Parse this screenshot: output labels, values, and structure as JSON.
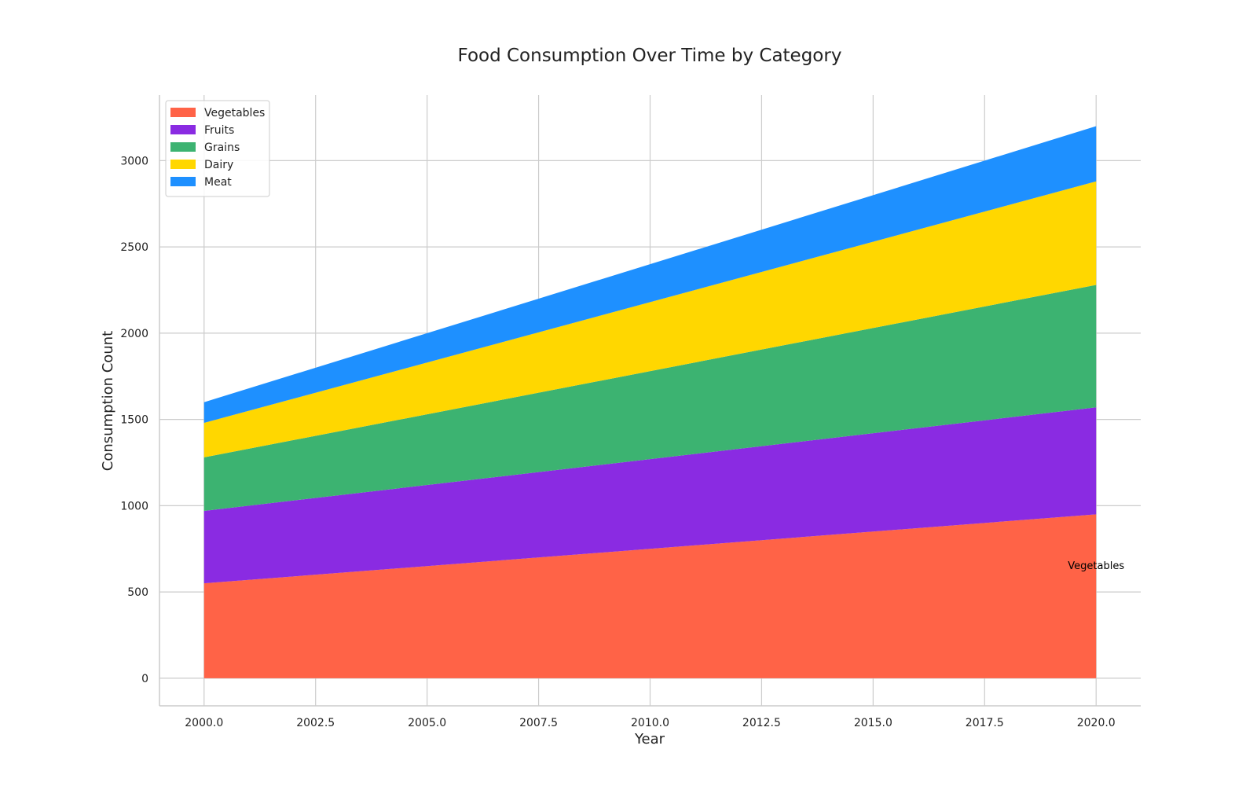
{
  "chart_data": {
    "type": "area",
    "stacked": true,
    "title": "Food Consumption Over Time by Category",
    "xlabel": "Year",
    "ylabel": "Consumption Count",
    "x": [
      2000,
      2020
    ],
    "xlim": [
      1999,
      2021
    ],
    "ylim": [
      -160,
      3380
    ],
    "xticks": [
      2000,
      2002.5,
      2005,
      2007.5,
      2010,
      2012.5,
      2015,
      2017.5,
      2020
    ],
    "xtick_labels": [
      "2000.0",
      "2002.5",
      "2005.0",
      "2007.5",
      "2010.0",
      "2012.5",
      "2015.0",
      "2017.5",
      "2020.0"
    ],
    "yticks": [
      0,
      500,
      1000,
      1500,
      2000,
      2500,
      3000
    ],
    "ytick_labels": [
      "0",
      "500",
      "1000",
      "1500",
      "2000",
      "2500",
      "3000"
    ],
    "grid": true,
    "legend_position": "top-left",
    "series": [
      {
        "name": "Vegetables",
        "color": "#FF6347",
        "values": [
          550,
          950
        ]
      },
      {
        "name": "Fruits",
        "color": "#8A2BE2",
        "values": [
          420,
          620
        ]
      },
      {
        "name": "Grains",
        "color": "#3CB371",
        "values": [
          310,
          710
        ]
      },
      {
        "name": "Dairy",
        "color": "#FFD700",
        "values": [
          200,
          600
        ]
      },
      {
        "name": "Meat",
        "color": "#1E90FF",
        "values": [
          120,
          320
        ]
      }
    ],
    "annotations": [
      {
        "text": "Vegetables",
        "x": 2020,
        "y": 650
      }
    ]
  }
}
